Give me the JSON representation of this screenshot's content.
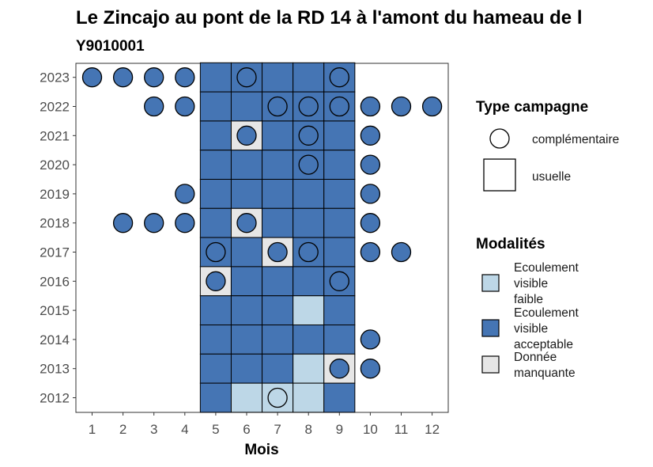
{
  "chart_data": {
    "type": "heatmap",
    "title": "Le Zincajo au pont de la RD 14 à l'amont du hameau de l",
    "subtitle": "Y9010001",
    "xlabel": "Mois",
    "ylabel": "",
    "x": [
      1,
      2,
      3,
      4,
      5,
      6,
      7,
      8,
      9,
      10,
      11,
      12
    ],
    "y": [
      2012,
      2013,
      2014,
      2015,
      2016,
      2017,
      2018,
      2019,
      2020,
      2021,
      2022,
      2023
    ],
    "colors": {
      "Ecoulement visible faible": "#bdd7e7",
      "Ecoulement visible acceptable": "#4575b4",
      "Donnée manquante": "#e6e6e6"
    },
    "legend": {
      "type_title": "Type campagne",
      "type_items": [
        {
          "label": "complémentaire",
          "shape": "circle"
        },
        {
          "label": "usuelle",
          "shape": "square"
        }
      ],
      "mod_title": "Modalités",
      "mod_items": [
        {
          "key": "Ecoulement visible faible",
          "lines": [
            "Ecoulement",
            "visible",
            "faible"
          ]
        },
        {
          "key": "Ecoulement visible acceptable",
          "lines": [
            "Ecoulement",
            "visible",
            "acceptable"
          ]
        },
        {
          "key": "Donnée manquante",
          "lines": [
            "Donnée",
            "manquante"
          ]
        }
      ]
    },
    "usuelle": [
      {
        "year": 2023,
        "month": 5,
        "value": "Ecoulement visible acceptable"
      },
      {
        "year": 2023,
        "month": 6,
        "value": "Ecoulement visible acceptable"
      },
      {
        "year": 2023,
        "month": 7,
        "value": "Ecoulement visible acceptable"
      },
      {
        "year": 2023,
        "month": 8,
        "value": "Ecoulement visible acceptable"
      },
      {
        "year": 2023,
        "month": 9,
        "value": "Ecoulement visible acceptable"
      },
      {
        "year": 2022,
        "month": 5,
        "value": "Ecoulement visible acceptable"
      },
      {
        "year": 2022,
        "month": 6,
        "value": "Ecoulement visible acceptable"
      },
      {
        "year": 2022,
        "month": 7,
        "value": "Ecoulement visible acceptable"
      },
      {
        "year": 2022,
        "month": 8,
        "value": "Ecoulement visible acceptable"
      },
      {
        "year": 2022,
        "month": 9,
        "value": "Ecoulement visible acceptable"
      },
      {
        "year": 2021,
        "month": 5,
        "value": "Ecoulement visible acceptable"
      },
      {
        "year": 2021,
        "month": 6,
        "value": "Donnée manquante"
      },
      {
        "year": 2021,
        "month": 7,
        "value": "Ecoulement visible acceptable"
      },
      {
        "year": 2021,
        "month": 8,
        "value": "Ecoulement visible acceptable"
      },
      {
        "year": 2021,
        "month": 9,
        "value": "Ecoulement visible acceptable"
      },
      {
        "year": 2020,
        "month": 5,
        "value": "Ecoulement visible acceptable"
      },
      {
        "year": 2020,
        "month": 6,
        "value": "Ecoulement visible acceptable"
      },
      {
        "year": 2020,
        "month": 7,
        "value": "Ecoulement visible acceptable"
      },
      {
        "year": 2020,
        "month": 8,
        "value": "Ecoulement visible acceptable"
      },
      {
        "year": 2020,
        "month": 9,
        "value": "Ecoulement visible acceptable"
      },
      {
        "year": 2019,
        "month": 5,
        "value": "Ecoulement visible acceptable"
      },
      {
        "year": 2019,
        "month": 6,
        "value": "Ecoulement visible acceptable"
      },
      {
        "year": 2019,
        "month": 7,
        "value": "Ecoulement visible acceptable"
      },
      {
        "year": 2019,
        "month": 8,
        "value": "Ecoulement visible acceptable"
      },
      {
        "year": 2019,
        "month": 9,
        "value": "Ecoulement visible acceptable"
      },
      {
        "year": 2018,
        "month": 5,
        "value": "Ecoulement visible acceptable"
      },
      {
        "year": 2018,
        "month": 6,
        "value": "Donnée manquante"
      },
      {
        "year": 2018,
        "month": 7,
        "value": "Ecoulement visible acceptable"
      },
      {
        "year": 2018,
        "month": 8,
        "value": "Ecoulement visible acceptable"
      },
      {
        "year": 2018,
        "month": 9,
        "value": "Ecoulement visible acceptable"
      },
      {
        "year": 2017,
        "month": 5,
        "value": "Ecoulement visible acceptable"
      },
      {
        "year": 2017,
        "month": 6,
        "value": "Ecoulement visible acceptable"
      },
      {
        "year": 2017,
        "month": 7,
        "value": "Donnée manquante"
      },
      {
        "year": 2017,
        "month": 8,
        "value": "Ecoulement visible acceptable"
      },
      {
        "year": 2017,
        "month": 9,
        "value": "Ecoulement visible acceptable"
      },
      {
        "year": 2016,
        "month": 5,
        "value": "Donnée manquante"
      },
      {
        "year": 2016,
        "month": 6,
        "value": "Ecoulement visible acceptable"
      },
      {
        "year": 2016,
        "month": 7,
        "value": "Ecoulement visible acceptable"
      },
      {
        "year": 2016,
        "month": 8,
        "value": "Ecoulement visible acceptable"
      },
      {
        "year": 2016,
        "month": 9,
        "value": "Ecoulement visible acceptable"
      },
      {
        "year": 2015,
        "month": 5,
        "value": "Ecoulement visible acceptable"
      },
      {
        "year": 2015,
        "month": 6,
        "value": "Ecoulement visible acceptable"
      },
      {
        "year": 2015,
        "month": 7,
        "value": "Ecoulement visible acceptable"
      },
      {
        "year": 2015,
        "month": 8,
        "value": "Ecoulement visible faible"
      },
      {
        "year": 2015,
        "month": 9,
        "value": "Ecoulement visible acceptable"
      },
      {
        "year": 2014,
        "month": 5,
        "value": "Ecoulement visible acceptable"
      },
      {
        "year": 2014,
        "month": 6,
        "value": "Ecoulement visible acceptable"
      },
      {
        "year": 2014,
        "month": 7,
        "value": "Ecoulement visible acceptable"
      },
      {
        "year": 2014,
        "month": 8,
        "value": "Ecoulement visible acceptable"
      },
      {
        "year": 2014,
        "month": 9,
        "value": "Ecoulement visible acceptable"
      },
      {
        "year": 2013,
        "month": 5,
        "value": "Ecoulement visible acceptable"
      },
      {
        "year": 2013,
        "month": 6,
        "value": "Ecoulement visible acceptable"
      },
      {
        "year": 2013,
        "month": 7,
        "value": "Ecoulement visible acceptable"
      },
      {
        "year": 2013,
        "month": 8,
        "value": "Ecoulement visible faible"
      },
      {
        "year": 2013,
        "month": 9,
        "value": "Donnée manquante"
      },
      {
        "year": 2012,
        "month": 5,
        "value": "Ecoulement visible acceptable"
      },
      {
        "year": 2012,
        "month": 6,
        "value": "Ecoulement visible faible"
      },
      {
        "year": 2012,
        "month": 7,
        "value": "Ecoulement visible faible"
      },
      {
        "year": 2012,
        "month": 8,
        "value": "Ecoulement visible faible"
      },
      {
        "year": 2012,
        "month": 9,
        "value": "Ecoulement visible acceptable"
      }
    ],
    "complementaire": [
      {
        "year": 2023,
        "month": 1,
        "value": "Ecoulement visible acceptable"
      },
      {
        "year": 2023,
        "month": 2,
        "value": "Ecoulement visible acceptable"
      },
      {
        "year": 2023,
        "month": 3,
        "value": "Ecoulement visible acceptable"
      },
      {
        "year": 2023,
        "month": 4,
        "value": "Ecoulement visible acceptable"
      },
      {
        "year": 2023,
        "month": 6,
        "value": "Ecoulement visible acceptable"
      },
      {
        "year": 2023,
        "month": 9,
        "value": "Ecoulement visible acceptable"
      },
      {
        "year": 2022,
        "month": 3,
        "value": "Ecoulement visible acceptable"
      },
      {
        "year": 2022,
        "month": 4,
        "value": "Ecoulement visible acceptable"
      },
      {
        "year": 2022,
        "month": 7,
        "value": "Ecoulement visible acceptable"
      },
      {
        "year": 2022,
        "month": 8,
        "value": "Ecoulement visible acceptable"
      },
      {
        "year": 2022,
        "month": 9,
        "value": "Ecoulement visible acceptable"
      },
      {
        "year": 2022,
        "month": 10,
        "value": "Ecoulement visible acceptable"
      },
      {
        "year": 2022,
        "month": 11,
        "value": "Ecoulement visible acceptable"
      },
      {
        "year": 2022,
        "month": 12,
        "value": "Ecoulement visible acceptable"
      },
      {
        "year": 2021,
        "month": 6,
        "value": "Ecoulement visible acceptable"
      },
      {
        "year": 2021,
        "month": 8,
        "value": "Ecoulement visible acceptable"
      },
      {
        "year": 2021,
        "month": 10,
        "value": "Ecoulement visible acceptable"
      },
      {
        "year": 2020,
        "month": 8,
        "value": "Ecoulement visible acceptable"
      },
      {
        "year": 2020,
        "month": 10,
        "value": "Ecoulement visible acceptable"
      },
      {
        "year": 2019,
        "month": 4,
        "value": "Ecoulement visible acceptable"
      },
      {
        "year": 2019,
        "month": 10,
        "value": "Ecoulement visible acceptable"
      },
      {
        "year": 2018,
        "month": 2,
        "value": "Ecoulement visible acceptable"
      },
      {
        "year": 2018,
        "month": 3,
        "value": "Ecoulement visible acceptable"
      },
      {
        "year": 2018,
        "month": 4,
        "value": "Ecoulement visible acceptable"
      },
      {
        "year": 2018,
        "month": 6,
        "value": "Ecoulement visible acceptable"
      },
      {
        "year": 2018,
        "month": 10,
        "value": "Ecoulement visible acceptable"
      },
      {
        "year": 2017,
        "month": 5,
        "value": "Ecoulement visible acceptable"
      },
      {
        "year": 2017,
        "month": 7,
        "value": "Ecoulement visible acceptable"
      },
      {
        "year": 2017,
        "month": 8,
        "value": "Ecoulement visible acceptable"
      },
      {
        "year": 2017,
        "month": 10,
        "value": "Ecoulement visible acceptable"
      },
      {
        "year": 2017,
        "month": 11,
        "value": "Ecoulement visible acceptable"
      },
      {
        "year": 2016,
        "month": 5,
        "value": "Ecoulement visible acceptable"
      },
      {
        "year": 2016,
        "month": 9,
        "value": "Ecoulement visible acceptable"
      },
      {
        "year": 2014,
        "month": 10,
        "value": "Ecoulement visible acceptable"
      },
      {
        "year": 2013,
        "month": 9,
        "value": "Ecoulement visible acceptable"
      },
      {
        "year": 2013,
        "month": 10,
        "value": "Ecoulement visible acceptable"
      },
      {
        "year": 2012,
        "month": 7,
        "value": "Ecoulement visible faible"
      }
    ]
  }
}
